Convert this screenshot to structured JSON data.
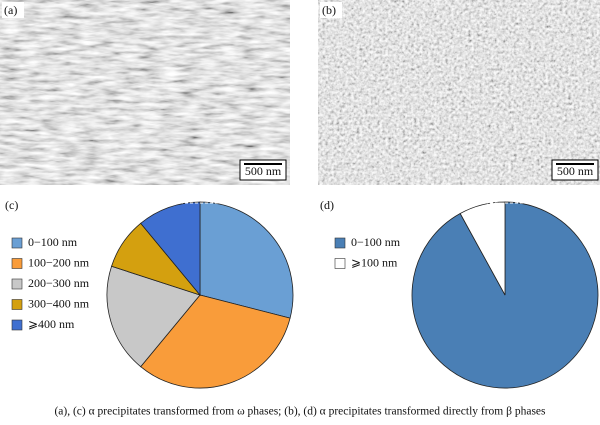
{
  "panels": {
    "a": "(a)",
    "b": "(b)",
    "c": "(c)",
    "d": "(d)",
    "scale_a": "500 nm",
    "scale_b": "500 nm"
  },
  "caption": "(a), (c) α precipitates  transformed from ω phases; (b), (d) α precipitates transformed directly from β phases",
  "chart_data": [
    {
      "type": "pie",
      "categories": [
        "0−100 nm",
        "100−200 nm",
        "200−300 nm",
        "300−400 nm",
        "⩾400 nm"
      ],
      "values": [
        29,
        32,
        19,
        9,
        11
      ],
      "colors": [
        "#6a9fd4",
        "#f99c3a",
        "#c8c8c8",
        "#d4a00f",
        "#3f6fd0"
      ]
    },
    {
      "type": "pie",
      "categories": [
        "0−100 nm",
        "⩾100 nm"
      ],
      "values": [
        92,
        8
      ],
      "colors": [
        "#4a7fb5",
        "#ffffff"
      ]
    }
  ]
}
